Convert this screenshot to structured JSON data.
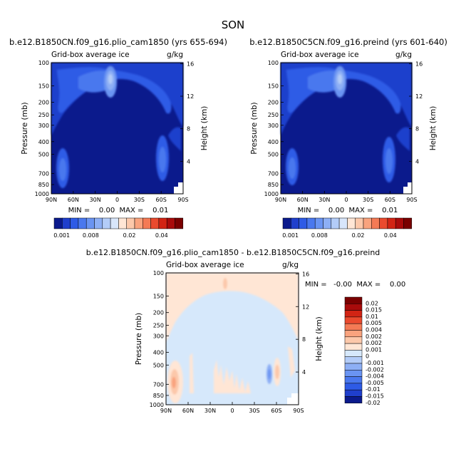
{
  "page_title": "SON",
  "panels": [
    {
      "title": "b.e12.B1850CN.f09_g16.plio_cam1850 (yrs 655-694)",
      "subtitle_left": "Grid-box average ice",
      "subtitle_right": "g/kg",
      "minmax": "MIN =    0.00  MAX =    0.01"
    },
    {
      "title": "b.e12.B1850C5CN.f09_g16.preind (yrs 601-640)",
      "subtitle_left": "Grid-box average ice",
      "subtitle_right": "g/kg",
      "minmax": "MIN =    0.00  MAX =    0.01"
    },
    {
      "title": "b.e12.B1850CN.f09_g16.plio_cam1850 - b.e12.B1850C5CN.f09_g16.preind",
      "subtitle_left": "Grid-box average ice",
      "subtitle_right": "g/kg",
      "minmax": "MIN =   -0.00  MAX =    0.00"
    }
  ],
  "colors": {
    "abs_background": "#0b1a8c",
    "diff_background": "#d6e8fb"
  },
  "abs_colorbar": {
    "colors": [
      "#0b1a8c",
      "#1f3fcc",
      "#2e5be6",
      "#4a78ee",
      "#6a94f2",
      "#8daff5",
      "#b3ccf8",
      "#d8e6fb",
      "#ffe6d5",
      "#fcc8aa",
      "#f9a37e",
      "#f47a55",
      "#ea4a2e",
      "#d22414",
      "#a90b0b",
      "#7a0000"
    ],
    "labels": [
      "0.001",
      "0.008",
      "0.02",
      "0.04"
    ]
  },
  "diff_colorbar": {
    "colors": [
      "#7a0000",
      "#a90b0b",
      "#d22414",
      "#ea4a2e",
      "#f47a55",
      "#f9a37e",
      "#fcc8aa",
      "#ffe6d5",
      "#d6e8fb",
      "#b3ccf8",
      "#8daff5",
      "#6a94f2",
      "#4a78ee",
      "#2e5be6",
      "#1f3fcc",
      "#0b1a8c"
    ],
    "labels": [
      "0.02",
      "0.015",
      "0.01",
      "0.005",
      "0.004",
      "0.002",
      "0.002",
      "0.001",
      "0",
      "-0.001",
      "-0.002",
      "-0.004",
      "-0.005",
      "-0.01",
      "-0.015",
      "-0.02"
    ]
  },
  "chart_data": [
    {
      "type": "heatmap",
      "title": "b.e12.B1850CN.f09_g16.plio_cam1850 (yrs 655-694)",
      "subtitle": "Grid-box average ice",
      "units": "g/kg",
      "xlabel": "",
      "ylabel": "Pressure (mb)",
      "ylabel_right": "Height (km)",
      "x_ticks": [
        "90N",
        "60N",
        "30N",
        "0",
        "30S",
        "60S",
        "90S"
      ],
      "xlim": [
        90,
        -90
      ],
      "y_ticks": [
        100,
        150,
        200,
        250,
        300,
        400,
        500,
        700,
        850,
        1000
      ],
      "ylim": [
        1000,
        100
      ],
      "y_scale": "log",
      "height_ticks": [
        16,
        12,
        8,
        4
      ],
      "min": 0.0,
      "max": 0.01,
      "contour_levels": [
        0.001,
        0.002,
        0.004,
        0.006,
        0.008,
        0.01,
        0.012,
        0.015,
        0.02,
        0.025,
        0.03,
        0.035,
        0.04,
        0.045,
        0.05
      ]
    },
    {
      "type": "heatmap",
      "title": "b.e12.B1850C5CN.f09_g16.preind (yrs 601-640)",
      "subtitle": "Grid-box average ice",
      "units": "g/kg",
      "xlabel": "",
      "ylabel": "Pressure (mb)",
      "ylabel_right": "Height (km)",
      "x_ticks": [
        "90N",
        "60N",
        "30N",
        "0",
        "30S",
        "60S",
        "90S"
      ],
      "xlim": [
        90,
        -90
      ],
      "y_ticks": [
        100,
        150,
        200,
        250,
        300,
        400,
        500,
        700,
        850,
        1000
      ],
      "ylim": [
        1000,
        100
      ],
      "y_scale": "log",
      "height_ticks": [
        16,
        12,
        8,
        4
      ],
      "min": 0.0,
      "max": 0.01
    },
    {
      "type": "heatmap",
      "title": "b.e12.B1850CN.f09_g16.plio_cam1850 - b.e12.B1850C5CN.f09_g16.preind",
      "subtitle": "Grid-box average ice",
      "units": "g/kg",
      "xlabel": "",
      "ylabel": "Pressure (mb)",
      "ylabel_right": "Height (km)",
      "x_ticks": [
        "90N",
        "60N",
        "30N",
        "0",
        "30S",
        "60S",
        "90S"
      ],
      "xlim": [
        90,
        -90
      ],
      "y_ticks": [
        100,
        150,
        200,
        250,
        300,
        400,
        500,
        700,
        850,
        1000
      ],
      "ylim": [
        1000,
        100
      ],
      "y_scale": "log",
      "height_ticks": [
        16,
        12,
        8,
        4
      ],
      "min": -0.0,
      "max": 0.0,
      "contour_levels": [
        -0.02,
        -0.015,
        -0.01,
        -0.005,
        -0.004,
        -0.002,
        -0.001,
        0,
        0.001,
        0.002,
        0.004,
        0.005,
        0.01,
        0.015,
        0.02
      ]
    }
  ]
}
